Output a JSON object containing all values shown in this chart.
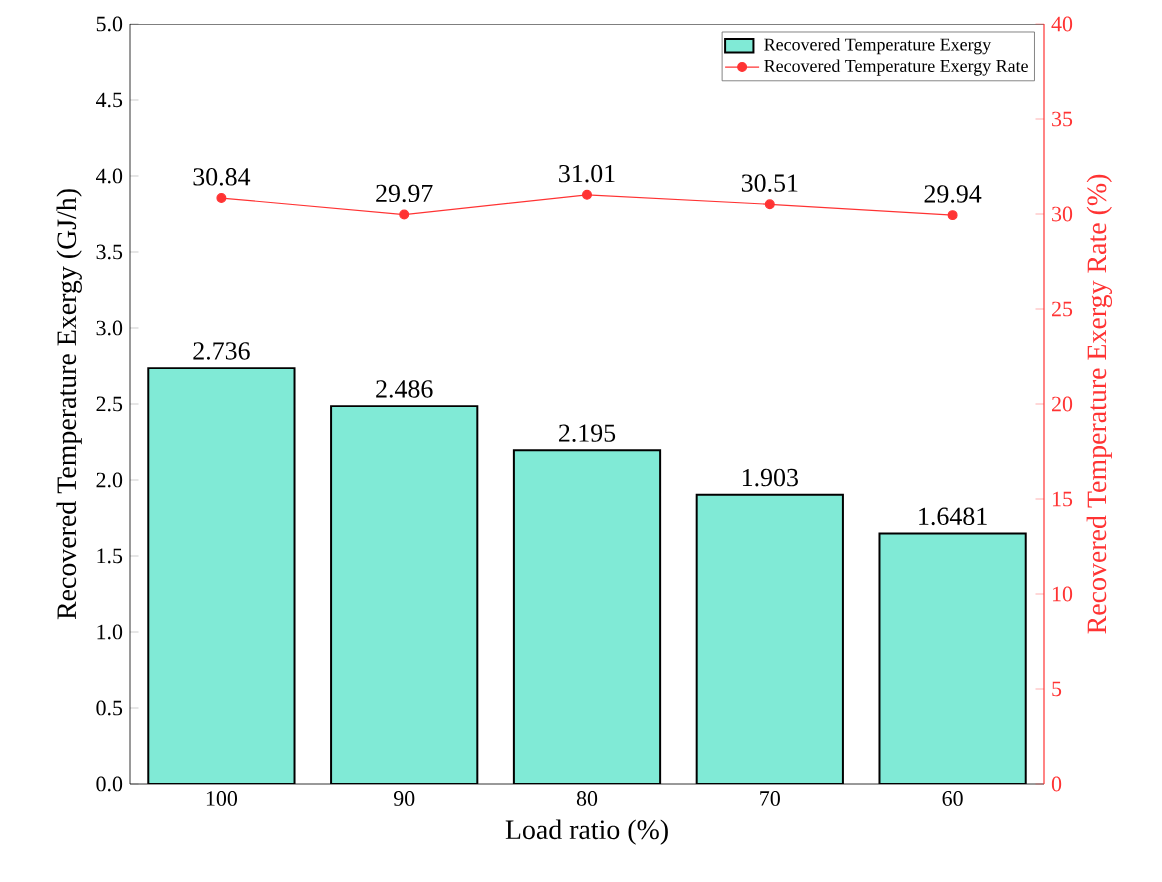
{
  "chart_data": {
    "type": "bar",
    "xlabel": "Load ratio (%)",
    "ylabel": "Recovered Temperature Exergy (GJ/h)",
    "y2label": "Recovered Temperature Exergy Rate (%)",
    "categories": [
      "100",
      "90",
      "80",
      "70",
      "60"
    ],
    "series": [
      {
        "name": "Recovered Temperature Exergy",
        "color": "#80ead6",
        "values": [
          2.736,
          2.486,
          2.195,
          1.903,
          1.6481
        ],
        "value_labels": [
          "2.736",
          "2.486",
          "2.195",
          "1.903",
          "1.6481"
        ]
      },
      {
        "name": "Recovered Temperature Exergy Rate",
        "type": "line",
        "axis": "y2",
        "color": "#ff3333",
        "marker": "circle",
        "values": [
          30.84,
          29.97,
          31.01,
          30.51,
          29.94
        ],
        "value_labels": [
          "30.84",
          "29.97",
          "31.01",
          "30.51",
          "29.94"
        ]
      }
    ],
    "ylim": [
      0,
      5
    ],
    "yticks": [
      {
        "value": 0,
        "label": "0.0"
      },
      {
        "value": 0.5,
        "label": "0.5"
      },
      {
        "value": 1,
        "label": "1.0"
      },
      {
        "value": 1.5,
        "label": "1.5"
      },
      {
        "value": 2,
        "label": "2.0"
      },
      {
        "value": 2.5,
        "label": "2.5"
      },
      {
        "value": 3,
        "label": "3.0"
      },
      {
        "value": 3.5,
        "label": "3.5"
      },
      {
        "value": 4,
        "label": "4.0"
      },
      {
        "value": 4.5,
        "label": "4.5"
      },
      {
        "value": 5,
        "label": "5.0"
      }
    ],
    "y2lim": [
      0,
      40
    ],
    "y2ticks": [
      0,
      5,
      10,
      15,
      20,
      25,
      30,
      35,
      40
    ],
    "legend": "top right",
    "grid": false
  }
}
